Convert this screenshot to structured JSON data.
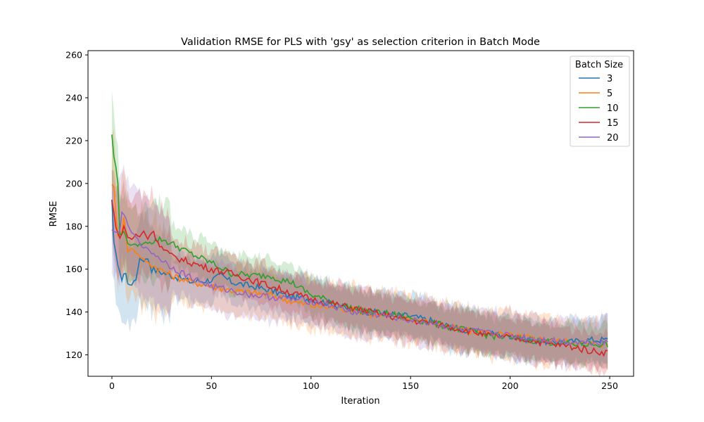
{
  "chart_data": {
    "type": "line",
    "title": "Validation RMSE for PLS with 'gsy' as selection criterion in Batch Mode",
    "xlabel": "Iteration",
    "ylabel": "RMSE",
    "xlim": [
      -12,
      262
    ],
    "ylim": [
      110,
      262
    ],
    "xticks": [
      0,
      50,
      100,
      150,
      200,
      250
    ],
    "yticks": [
      120,
      140,
      160,
      180,
      200,
      220,
      240,
      260
    ],
    "x_range": [
      0,
      249
    ],
    "legend": {
      "title": "Batch Size",
      "position": "top-right"
    },
    "band": "shaded spread around each mean line",
    "series": [
      {
        "name": "3",
        "color": "#1f77b4",
        "band_width": 10,
        "keypoints": [
          [
            0,
            192
          ],
          [
            1,
            172
          ],
          [
            2,
            168
          ],
          [
            3,
            162
          ],
          [
            4,
            158
          ],
          [
            5,
            155
          ],
          [
            6,
            158
          ],
          [
            7,
            158
          ],
          [
            8,
            153
          ],
          [
            10,
            153
          ],
          [
            12,
            155
          ],
          [
            14,
            165
          ],
          [
            16,
            164
          ],
          [
            18,
            165
          ],
          [
            20,
            160
          ],
          [
            30,
            157
          ],
          [
            40,
            154
          ],
          [
            50,
            155
          ],
          [
            55,
            157
          ],
          [
            60,
            154
          ],
          [
            70,
            152
          ],
          [
            80,
            150
          ],
          [
            90,
            147
          ],
          [
            100,
            146
          ],
          [
            110,
            144
          ],
          [
            120,
            141
          ],
          [
            130,
            140
          ],
          [
            140,
            139
          ],
          [
            150,
            138
          ],
          [
            160,
            136
          ],
          [
            170,
            133
          ],
          [
            180,
            131
          ],
          [
            190,
            130
          ],
          [
            200,
            129
          ],
          [
            210,
            127
          ],
          [
            220,
            126
          ],
          [
            230,
            126
          ],
          [
            240,
            127
          ],
          [
            249,
            127
          ]
        ]
      },
      {
        "name": "5",
        "color": "#ff7f0e",
        "band_width": 11,
        "keypoints": [
          [
            0,
            200
          ],
          [
            1,
            198
          ],
          [
            2,
            185
          ],
          [
            3,
            176
          ],
          [
            5,
            178
          ],
          [
            6,
            184
          ],
          [
            8,
            168
          ],
          [
            10,
            170
          ],
          [
            12,
            168
          ],
          [
            15,
            165
          ],
          [
            20,
            162
          ],
          [
            30,
            157
          ],
          [
            40,
            154
          ],
          [
            50,
            152
          ],
          [
            60,
            150
          ],
          [
            70,
            149
          ],
          [
            80,
            148
          ],
          [
            90,
            145
          ],
          [
            100,
            143
          ],
          [
            110,
            142
          ],
          [
            120,
            141
          ],
          [
            130,
            139
          ],
          [
            140,
            138
          ],
          [
            150,
            137
          ],
          [
            160,
            135
          ],
          [
            170,
            133
          ],
          [
            180,
            131
          ],
          [
            190,
            130
          ],
          [
            200,
            129
          ],
          [
            210,
            128
          ],
          [
            220,
            127
          ],
          [
            230,
            126
          ],
          [
            240,
            125
          ],
          [
            249,
            125
          ]
        ]
      },
      {
        "name": "10",
        "color": "#2ca02c",
        "band_width": 9,
        "keypoints": [
          [
            0,
            223
          ],
          [
            1,
            212
          ],
          [
            2,
            208
          ],
          [
            3,
            200
          ],
          [
            4,
            176
          ],
          [
            6,
            178
          ],
          [
            8,
            172
          ],
          [
            12,
            171
          ],
          [
            20,
            173
          ],
          [
            25,
            174
          ],
          [
            30,
            172
          ],
          [
            40,
            167
          ],
          [
            50,
            163
          ],
          [
            60,
            158
          ],
          [
            70,
            157
          ],
          [
            80,
            157
          ],
          [
            85,
            155
          ],
          [
            90,
            154
          ],
          [
            100,
            148
          ],
          [
            110,
            145
          ],
          [
            120,
            142
          ],
          [
            130,
            140
          ],
          [
            140,
            139
          ],
          [
            150,
            137
          ],
          [
            160,
            135
          ],
          [
            170,
            133
          ],
          [
            180,
            131
          ],
          [
            190,
            129
          ],
          [
            200,
            128
          ],
          [
            210,
            127
          ],
          [
            220,
            126
          ],
          [
            230,
            125
          ],
          [
            240,
            125
          ],
          [
            249,
            125
          ]
        ]
      },
      {
        "name": "15",
        "color": "#d62728",
        "band_width": 9,
        "keypoints": [
          [
            0,
            192
          ],
          [
            2,
            180
          ],
          [
            4,
            174
          ],
          [
            6,
            180
          ],
          [
            8,
            175
          ],
          [
            10,
            174
          ],
          [
            12,
            176
          ],
          [
            14,
            175
          ],
          [
            16,
            178
          ],
          [
            18,
            174
          ],
          [
            20,
            178
          ],
          [
            22,
            175
          ],
          [
            25,
            170
          ],
          [
            30,
            166
          ],
          [
            40,
            163
          ],
          [
            50,
            160
          ],
          [
            60,
            158
          ],
          [
            70,
            155
          ],
          [
            80,
            152
          ],
          [
            90,
            149
          ],
          [
            100,
            146
          ],
          [
            110,
            144
          ],
          [
            120,
            142
          ],
          [
            130,
            140
          ],
          [
            140,
            138
          ],
          [
            150,
            136
          ],
          [
            160,
            135
          ],
          [
            170,
            133
          ],
          [
            180,
            131
          ],
          [
            190,
            129
          ],
          [
            200,
            128
          ],
          [
            210,
            127
          ],
          [
            220,
            125
          ],
          [
            230,
            124
          ],
          [
            240,
            122
          ],
          [
            249,
            121
          ]
        ]
      },
      {
        "name": "20",
        "color": "#9467bd",
        "band_width": 11,
        "keypoints": [
          [
            0,
            178
          ],
          [
            2,
            177
          ],
          [
            4,
            178
          ],
          [
            5,
            186
          ],
          [
            7,
            184
          ],
          [
            9,
            178
          ],
          [
            12,
            175
          ],
          [
            15,
            171
          ],
          [
            20,
            168
          ],
          [
            30,
            161
          ],
          [
            40,
            156
          ],
          [
            50,
            152
          ],
          [
            60,
            150
          ],
          [
            70,
            148
          ],
          [
            80,
            147
          ],
          [
            90,
            146
          ],
          [
            100,
            145
          ],
          [
            110,
            143
          ],
          [
            120,
            140
          ],
          [
            130,
            139
          ],
          [
            140,
            138
          ],
          [
            150,
            136
          ],
          [
            160,
            135
          ],
          [
            170,
            133
          ],
          [
            180,
            131
          ],
          [
            190,
            130
          ],
          [
            200,
            129
          ],
          [
            210,
            128
          ],
          [
            220,
            127
          ],
          [
            230,
            126
          ],
          [
            240,
            126
          ],
          [
            249,
            126
          ]
        ]
      }
    ]
  }
}
